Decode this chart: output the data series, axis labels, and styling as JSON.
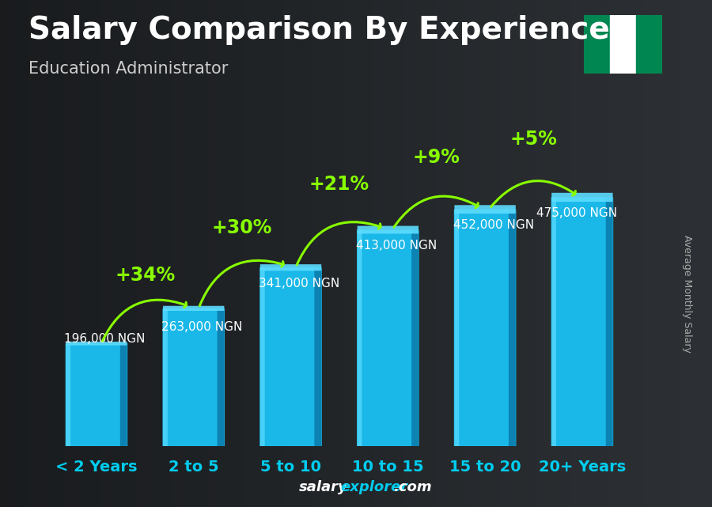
{
  "title": "Salary Comparison By Experience",
  "subtitle": "Education Administrator",
  "categories": [
    "< 2 Years",
    "2 to 5",
    "5 to 10",
    "10 to 15",
    "15 to 20",
    "20+ Years"
  ],
  "values": [
    196000,
    263000,
    341000,
    413000,
    452000,
    475000
  ],
  "labels": [
    "196,000 NGN",
    "263,000 NGN",
    "341,000 NGN",
    "413,000 NGN",
    "452,000 NGN",
    "475,000 NGN"
  ],
  "pct_changes": [
    "+34%",
    "+30%",
    "+21%",
    "+9%",
    "+5%"
  ],
  "bar_color": "#1ab8e8",
  "bar_color_dark": "#0a7aaa",
  "bar_color_light": "#5ddcff",
  "bg_color": "#2a2e35",
  "title_color": "#ffffff",
  "subtitle_color": "#cccccc",
  "label_color": "#ffffff",
  "pct_color": "#88ff00",
  "xtick_color": "#00ccee",
  "ylabel_text": "Average Monthly Salary",
  "watermark_salary": "salary",
  "watermark_explorer": "explorer",
  "watermark_dot_com": ".com",
  "watermark_color_salary": "#ffffff",
  "watermark_color_explorer": "#00ccee",
  "title_fontsize": 28,
  "subtitle_fontsize": 15,
  "label_fontsize": 11,
  "pct_fontsize": 17,
  "xticklabel_fontsize": 14,
  "flag_green": "#008751",
  "flag_white": "#ffffff",
  "ylim_max": 600000
}
